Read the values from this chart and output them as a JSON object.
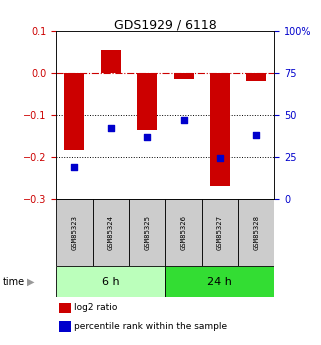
{
  "title": "GDS1929 / 6118",
  "samples": [
    "GSM85323",
    "GSM85324",
    "GSM85325",
    "GSM85326",
    "GSM85327",
    "GSM85328"
  ],
  "log2_ratio": [
    -0.185,
    0.055,
    -0.135,
    -0.015,
    -0.27,
    -0.02
  ],
  "percentile_rank": [
    19,
    42,
    37,
    47,
    24,
    38
  ],
  "ylim_left": [
    -0.3,
    0.1
  ],
  "ylim_right": [
    0,
    100
  ],
  "yticks_left": [
    0.1,
    0,
    -0.1,
    -0.2,
    -0.3
  ],
  "yticks_right": [
    100,
    75,
    50,
    25,
    0
  ],
  "groups": [
    {
      "label": "6 h",
      "indices": [
        0,
        1,
        2
      ],
      "color": "#bbffbb"
    },
    {
      "label": "24 h",
      "indices": [
        3,
        4,
        5
      ],
      "color": "#33dd33"
    }
  ],
  "bar_color": "#cc0000",
  "dot_color": "#0000cc",
  "ref_line_color": "#cc0000",
  "grid_color": "#000000",
  "bg_color": "#ffffff",
  "sample_bg": "#cccccc",
  "bar_width": 0.55,
  "time_label": "time",
  "legend_log2": "log2 ratio",
  "legend_pct": "percentile rank within the sample"
}
